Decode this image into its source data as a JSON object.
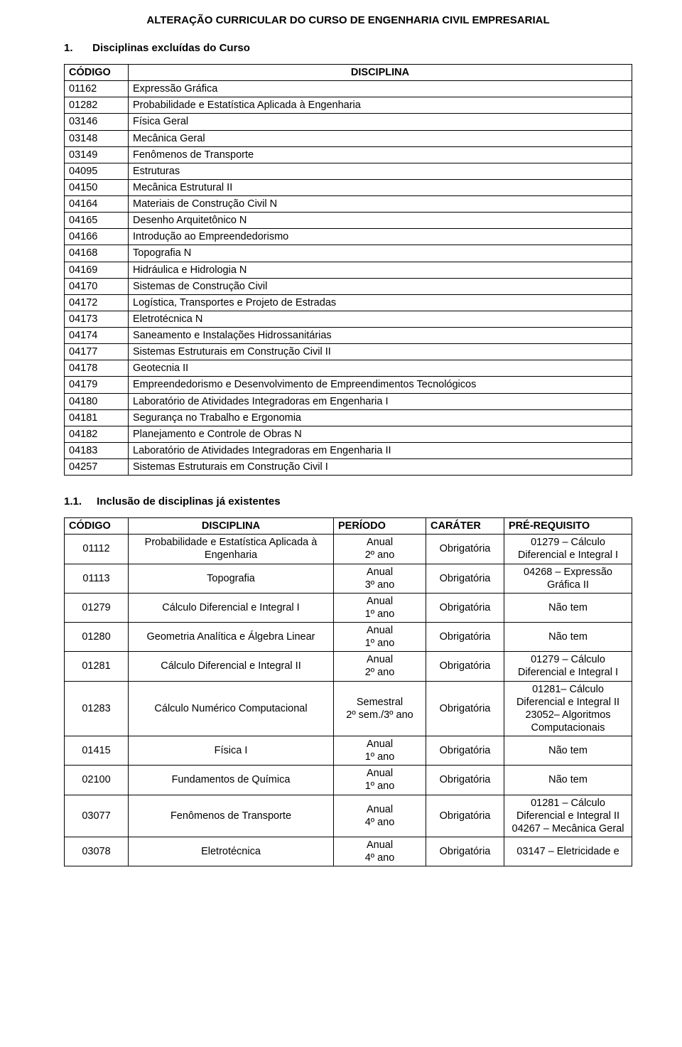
{
  "title": "ALTERAÇÃO CURRICULAR DO CURSO DE ENGENHARIA CIVIL EMPRESARIAL",
  "section1": {
    "num": "1.",
    "title": "Disciplinas excluídas do Curso"
  },
  "section2": {
    "num": "1.1.",
    "title": "Inclusão de disciplinas já existentes"
  },
  "t1": {
    "headers": {
      "codigo": "CÓDIGO",
      "disciplina": "DISCIPLINA"
    },
    "rows": [
      {
        "c": "01162",
        "d": "Expressão Gráfica"
      },
      {
        "c": "01282",
        "d": "Probabilidade e Estatística Aplicada à Engenharia"
      },
      {
        "c": "03146",
        "d": "Física Geral"
      },
      {
        "c": "03148",
        "d": "Mecânica Geral"
      },
      {
        "c": "03149",
        "d": "Fenômenos de Transporte"
      },
      {
        "c": "04095",
        "d": "Estruturas"
      },
      {
        "c": "04150",
        "d": "Mecânica Estrutural II"
      },
      {
        "c": "04164",
        "d": "Materiais de Construção Civil N"
      },
      {
        "c": "04165",
        "d": "Desenho Arquitetônico N"
      },
      {
        "c": "04166",
        "d": "Introdução ao Empreendedorismo"
      },
      {
        "c": "04168",
        "d": "Topografia N"
      },
      {
        "c": "04169",
        "d": "Hidráulica e Hidrologia N"
      },
      {
        "c": "04170",
        "d": "Sistemas de Construção Civil"
      },
      {
        "c": "04172",
        "d": "Logística, Transportes e Projeto de Estradas"
      },
      {
        "c": "04173",
        "d": "Eletrotécnica N"
      },
      {
        "c": "04174",
        "d": "Saneamento e Instalações Hidrossanitárias"
      },
      {
        "c": "04177",
        "d": "Sistemas Estruturais em Construção Civil II"
      },
      {
        "c": "04178",
        "d": "Geotecnia II"
      },
      {
        "c": "04179",
        "d": "Empreendedorismo e Desenvolvimento de Empreendimentos Tecnológicos"
      },
      {
        "c": "04180",
        "d": "Laboratório de Atividades Integradoras em Engenharia I"
      },
      {
        "c": "04181",
        "d": "Segurança no Trabalho e Ergonomia"
      },
      {
        "c": "04182",
        "d": "Planejamento e Controle de Obras N"
      },
      {
        "c": "04183",
        "d": "Laboratório de Atividades Integradoras em Engenharia II"
      },
      {
        "c": "04257",
        "d": "Sistemas Estruturais em Construção Civil I"
      }
    ]
  },
  "t2": {
    "headers": {
      "codigo": "CÓDIGO",
      "disciplina": "DISCIPLINA",
      "periodo": "PERÍODO",
      "carater": "CARÁTER",
      "pre": "PRÉ-REQUISITO"
    },
    "rows": [
      {
        "c": "01112",
        "d": "Probabilidade e Estatística Aplicada à Engenharia",
        "p": "Anual\n2º ano",
        "car": "Obrigatória",
        "pre": "01279 – Cálculo Diferencial e Integral I"
      },
      {
        "c": "01113",
        "d": "Topografia",
        "p": "Anual\n3º ano",
        "car": "Obrigatória",
        "pre": "04268 – Expressão Gráfica II"
      },
      {
        "c": "01279",
        "d": "Cálculo Diferencial e Integral I",
        "p": "Anual\n1º ano",
        "car": "Obrigatória",
        "pre": "Não tem"
      },
      {
        "c": "01280",
        "d": "Geometria Analítica e Álgebra Linear",
        "p": "Anual\n1º ano",
        "car": "Obrigatória",
        "pre": "Não tem"
      },
      {
        "c": "01281",
        "d": "Cálculo Diferencial e Integral II",
        "p": "Anual\n2º ano",
        "car": "Obrigatória",
        "pre": "01279 – Cálculo Diferencial e Integral I"
      },
      {
        "c": "01283",
        "d": "Cálculo Numérico Computacional",
        "p": "Semestral\n2º sem./3º ano",
        "car": "Obrigatória",
        "pre": "01281– Cálculo Diferencial e Integral II\n23052– Algoritmos Computacionais"
      },
      {
        "c": "01415",
        "d": "Física I",
        "p": "Anual\n1º ano",
        "car": "Obrigatória",
        "pre": "Não tem"
      },
      {
        "c": "02100",
        "d": "Fundamentos de Química",
        "p": "Anual\n1º ano",
        "car": "Obrigatória",
        "pre": "Não tem"
      },
      {
        "c": "03077",
        "d": "Fenômenos de Transporte",
        "p": "Anual\n4º ano",
        "car": "Obrigatória",
        "pre": "01281 – Cálculo Diferencial e Integral II\n04267 – Mecânica Geral"
      },
      {
        "c": "03078",
        "d": "Eletrotécnica",
        "p": "Anual\n4º ano",
        "car": "Obrigatória",
        "pre": "03147 – Eletricidade e"
      }
    ]
  },
  "colors": {
    "border": "#000000",
    "bg": "#ffffff",
    "text": "#000000"
  }
}
